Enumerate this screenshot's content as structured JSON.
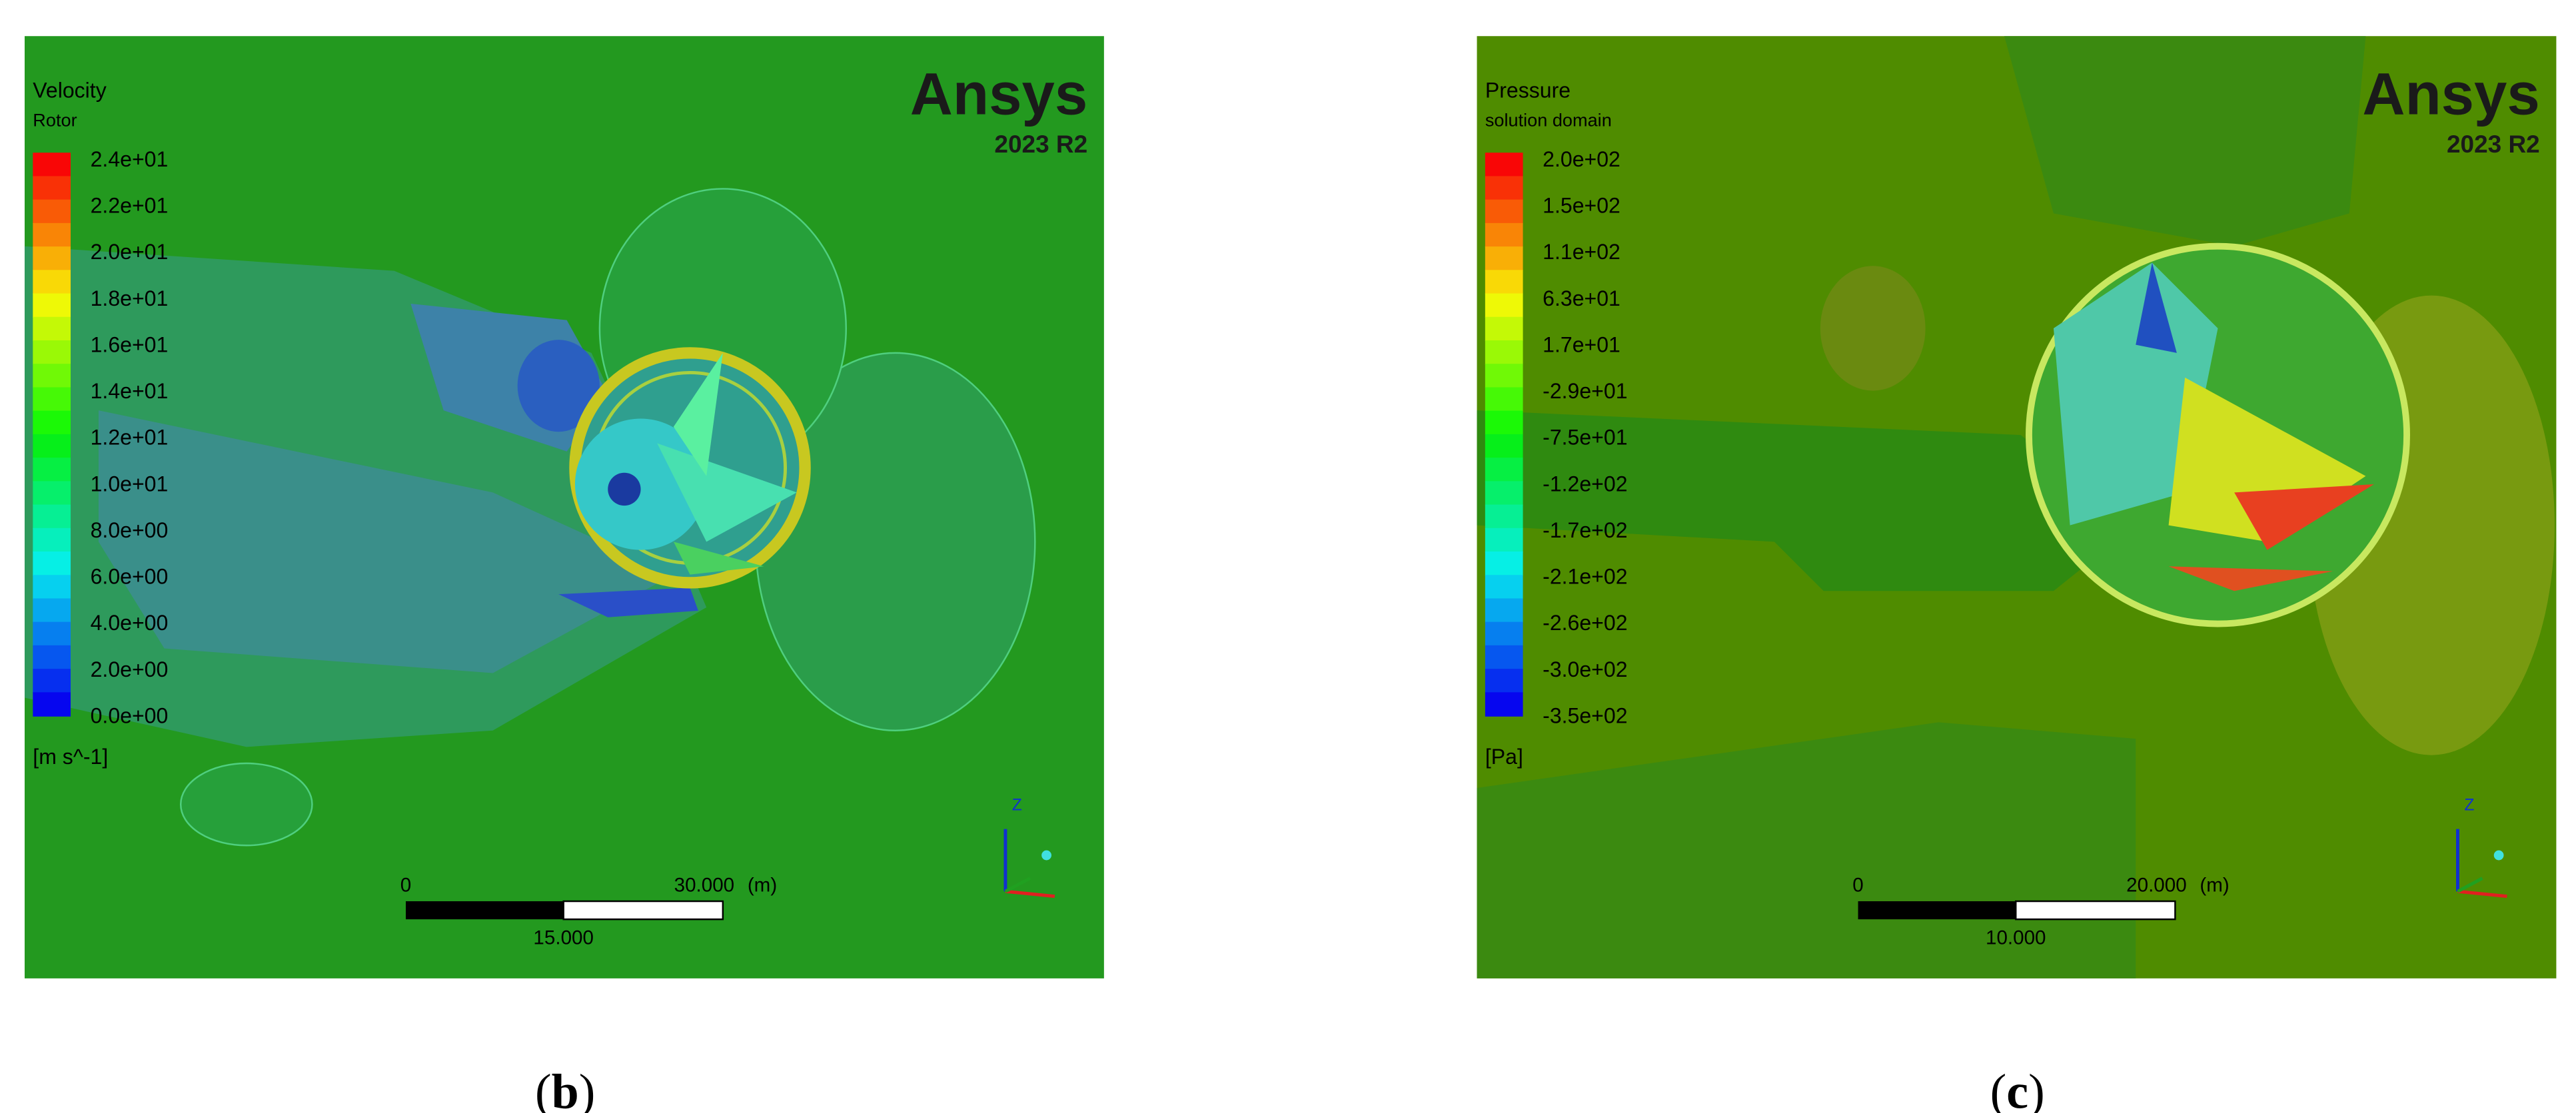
{
  "panels": [
    {
      "legend": {
        "title": "Velocity",
        "subtitle": "Rotor",
        "labels": [
          "2.4e+01",
          "2.2e+01",
          "2.0e+01",
          "1.8e+01",
          "1.6e+01",
          "1.4e+01",
          "1.2e+01",
          "1.0e+01",
          "8.0e+00",
          "6.0e+00",
          "4.0e+00",
          "2.0e+00",
          "0.0e+00"
        ],
        "unit": "[m s^-1]"
      },
      "logo": {
        "name": "Ansys",
        "version": "2023 R2"
      },
      "scale_bar": {
        "start": "0",
        "end": "30.000",
        "unit": "(m)",
        "middle": "15.000"
      },
      "triad": {
        "z": "Z"
      },
      "caption": [
        "(",
        "b",
        ")"
      ]
    },
    {
      "legend": {
        "title": "Pressure",
        "subtitle": "solution domain",
        "labels": [
          "2.0e+02",
          "1.5e+02",
          "1.1e+02",
          "6.3e+01",
          "1.7e+01",
          "-2.9e+01",
          "-7.5e+01",
          "-1.2e+02",
          "-1.7e+02",
          "-2.1e+02",
          "-2.6e+02",
          "-3.0e+02",
          "-3.5e+02"
        ],
        "unit": "[Pa]"
      },
      "logo": {
        "name": "Ansys",
        "version": "2023 R2"
      },
      "scale_bar": {
        "start": "0",
        "end": "20.000",
        "unit": "(m)",
        "middle": "10.000"
      },
      "triad": {
        "z": "Z"
      },
      "caption": [
        "(",
        "c",
        ")"
      ]
    }
  ]
}
